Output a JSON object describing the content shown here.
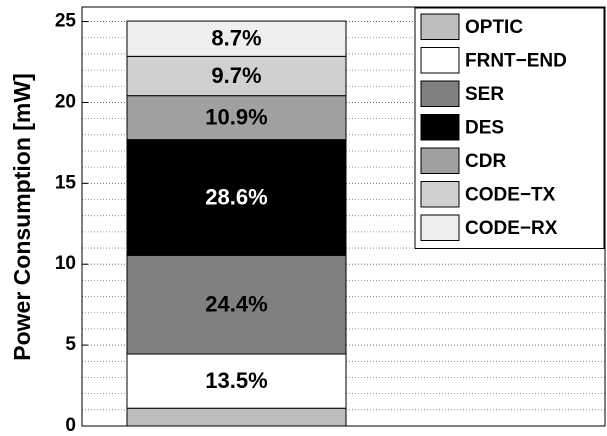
{
  "chart_data": {
    "type": "stacked_bar",
    "ylabel": "Power Consumption [mW]",
    "categories": [
      null
    ],
    "series": [
      {
        "name": "OPTIC",
        "color": "#bdbdbd",
        "values": [
          1.1
        ],
        "value_labels": [
          null
        ]
      },
      {
        "name": "FRNT−END",
        "color": "#ffffff",
        "values": [
          3.35
        ],
        "value_labels": [
          "13.5%"
        ]
      },
      {
        "name": "SER",
        "color": "#808080",
        "values": [
          6.1
        ],
        "value_labels": [
          "24.4%"
        ]
      },
      {
        "name": "DES",
        "color": "#000000",
        "values": [
          7.15
        ],
        "value_labels": [
          "28.6%"
        ]
      },
      {
        "name": "CDR",
        "color": "#a0a0a0",
        "values": [
          2.72
        ],
        "value_labels": [
          "10.9%"
        ]
      },
      {
        "name": "CODE−TX",
        "color": "#d0d0d0",
        "values": [
          2.43
        ],
        "value_labels": [
          "9.7%"
        ]
      },
      {
        "name": "CODE−RX",
        "color": "#efefef",
        "values": [
          2.18
        ],
        "value_labels": [
          "8.7%"
        ]
      }
    ],
    "ylim": [
      0,
      25.9
    ],
    "yticks": [
      0,
      5,
      10,
      15,
      20,
      25
    ],
    "minor_yticks": [
      1,
      2,
      3,
      4,
      6,
      7,
      8,
      9,
      11,
      12,
      13,
      14,
      16,
      17,
      18,
      19,
      21,
      22,
      23,
      24,
      25.9
    ],
    "grid": true,
    "legend": "upper right"
  }
}
